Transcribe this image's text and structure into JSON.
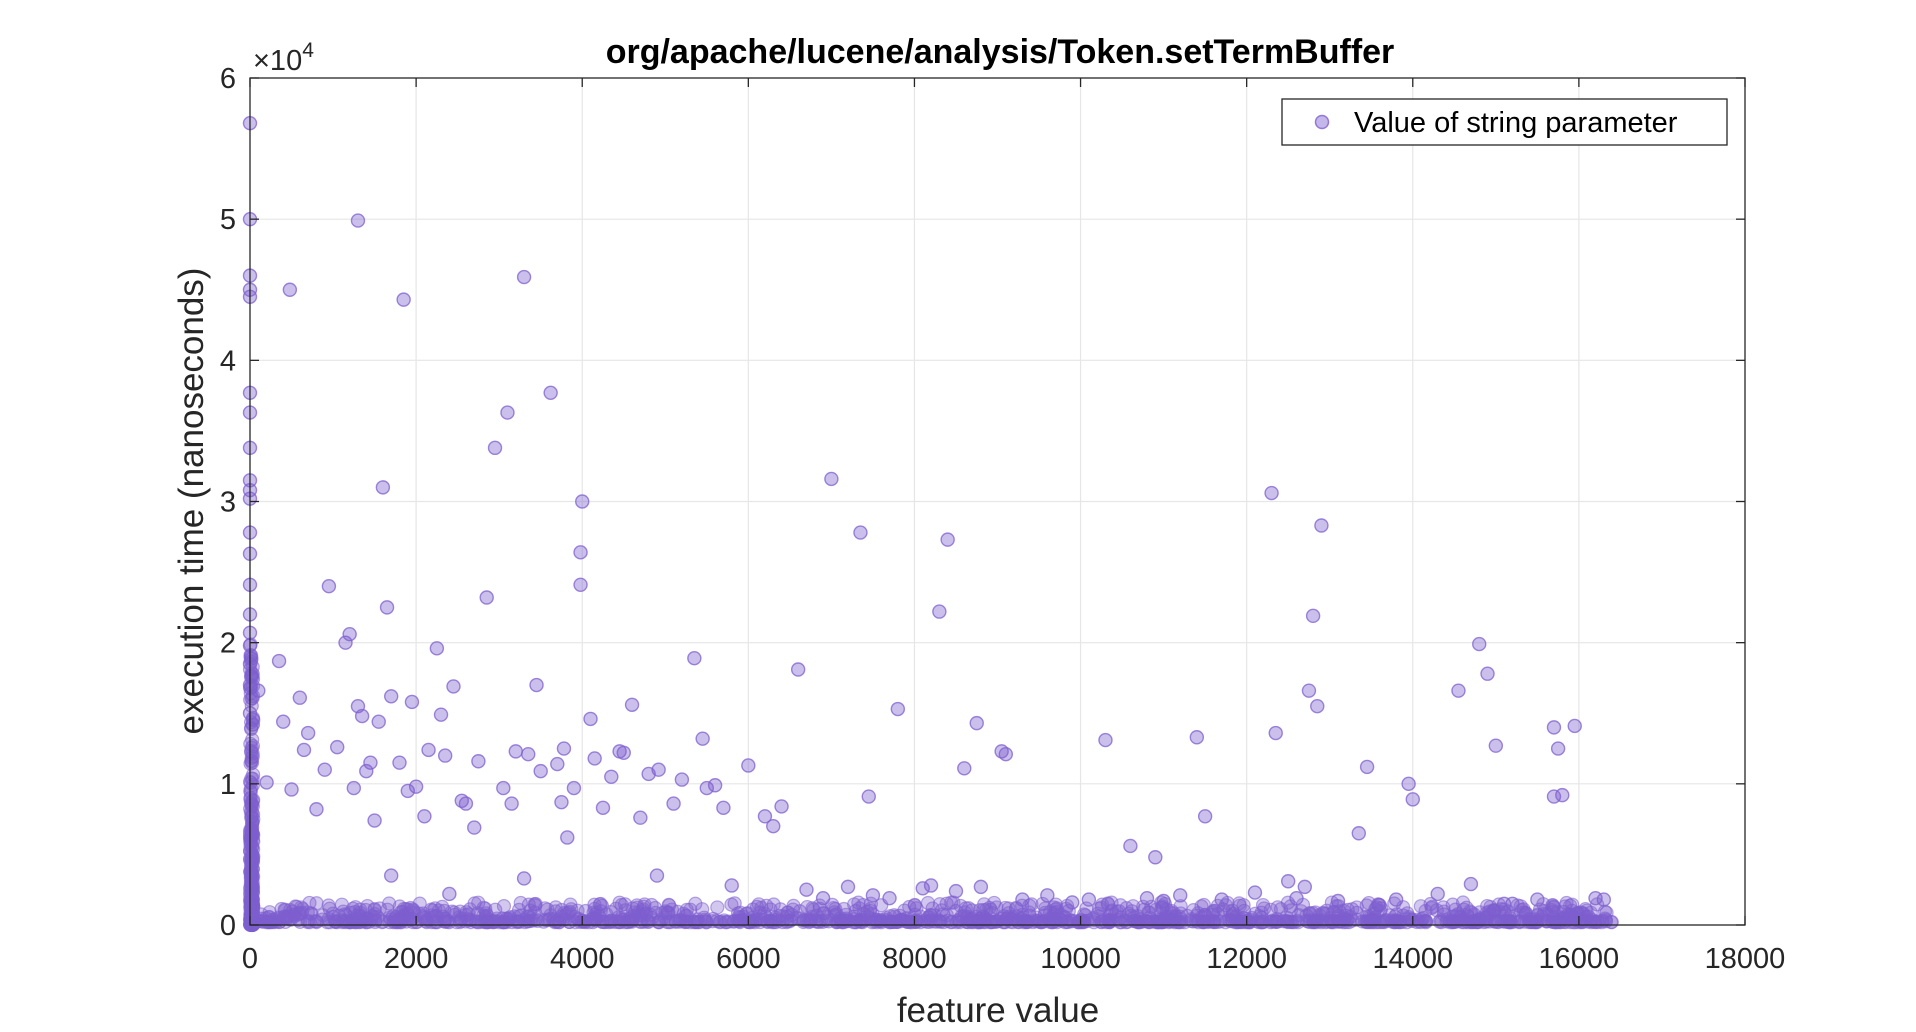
{
  "chart_data": {
    "type": "scatter",
    "title": "org/apache/lucene/analysis/Token.setTermBuffer",
    "xlabel": "feature value",
    "ylabel": "execution time (nanoseconds)",
    "xlim": [
      0,
      18000
    ],
    "ylim": [
      0,
      60000
    ],
    "x_ticks": [
      0,
      2000,
      4000,
      6000,
      8000,
      10000,
      12000,
      14000,
      16000,
      18000
    ],
    "y_ticks": [
      0,
      10000,
      20000,
      30000,
      40000,
      50000,
      60000
    ],
    "y_tick_labels": [
      "0",
      "1",
      "2",
      "3",
      "4",
      "5",
      "6"
    ],
    "y_exponent_label": "×10",
    "y_exponent_power": "4",
    "grid": true,
    "legend_position": "top-right",
    "marker_color": "#7e5fcf",
    "series": [
      {
        "name": "Value of string parameter",
        "x": [
          0,
          0,
          0,
          0,
          0,
          0,
          0,
          0,
          0,
          0,
          0,
          0,
          0,
          0,
          0,
          0,
          0,
          0,
          0,
          0,
          1300,
          1350,
          3300,
          3620,
          1850,
          480,
          3100,
          2950,
          1600,
          4000,
          3980,
          3980,
          1650,
          950,
          2250,
          2850,
          1200,
          350,
          650,
          1300,
          1450,
          1700,
          1950,
          2000,
          2450,
          2550,
          3350,
          3450,
          3780,
          3820,
          4100,
          4150,
          4350,
          4500,
          4600,
          4800,
          4920,
          5350,
          5450,
          5600,
          5700,
          6000,
          6300,
          6600,
          7000,
          7350,
          7450,
          7800,
          8300,
          8400,
          8600,
          8750,
          9100,
          9050,
          10300,
          10600,
          10900,
          11400,
          11500,
          12300,
          12350,
          12500,
          12800,
          12850,
          12900,
          12750,
          13350,
          13450,
          13950,
          14000,
          14550,
          14800,
          14900,
          15000,
          15700,
          15750,
          15800,
          15950,
          15700,
          200,
          400,
          500,
          700,
          800,
          900,
          1050,
          1150,
          1250,
          1400,
          1500,
          1550,
          1800,
          1900,
          2100,
          2150,
          2300,
          2350,
          2600,
          2700,
          2750,
          3050,
          3150,
          3200,
          3500,
          3700,
          3750,
          3900,
          4250,
          4450,
          4700,
          5100,
          5200,
          5500,
          6200,
          6400,
          6700,
          7200,
          7500,
          7700,
          8100,
          8500,
          8800,
          9300,
          9600,
          10100,
          10800,
          11200,
          11700,
          12100,
          12600,
          13100,
          13800,
          14300,
          14700,
          15200,
          15500,
          16200,
          100,
          600,
          1700,
          2400,
          3300,
          4900,
          5800,
          6900,
          8200,
          9900,
          11000,
          12700,
          13600,
          15100,
          16300
        ],
        "y": [
          56800,
          50000,
          46000,
          45000,
          44500,
          37700,
          36300,
          33800,
          31500,
          30800,
          30200,
          27800,
          26300,
          24100,
          22000,
          20700,
          19800,
          18500,
          17000,
          15000,
          49900,
          14800,
          45900,
          37700,
          44300,
          45000,
          36300,
          33800,
          31000,
          30000,
          26400,
          24100,
          22500,
          24000,
          19600,
          23200,
          20600,
          18700,
          12400,
          15500,
          11500,
          16200,
          15800,
          9800,
          16900,
          8800,
          12100,
          17000,
          12500,
          6200,
          14600,
          11800,
          10500,
          12200,
          15600,
          10700,
          11000,
          18900,
          13200,
          9900,
          8300,
          11300,
          7000,
          18100,
          31600,
          27800,
          9100,
          15300,
          22200,
          27300,
          11100,
          14300,
          12100,
          12300,
          13100,
          5600,
          4800,
          13300,
          7700,
          30600,
          13600,
          3100,
          21900,
          15500,
          28300,
          16600,
          6500,
          11200,
          10000,
          8900,
          16600,
          19900,
          17800,
          12700,
          14000,
          12500,
          9200,
          14100,
          9100,
          10100,
          14400,
          9600,
          13600,
          8200,
          11000,
          12600,
          20000,
          9700,
          10900,
          7400,
          14400,
          11500,
          9500,
          7700,
          12400,
          14900,
          12000,
          8600,
          6900,
          11600,
          9700,
          8600,
          12300,
          10900,
          11400,
          8700,
          9700,
          8300,
          12300,
          7600,
          8600,
          10300,
          9700,
          7700,
          8400,
          2500,
          2700,
          2100,
          1900,
          2600,
          2400,
          2700,
          1800,
          2100,
          1800,
          1900,
          2100,
          1800,
          2300,
          1900,
          1700,
          1800,
          2200,
          2900,
          1500,
          1800,
          1900,
          16600,
          16100,
          3500,
          2200,
          3300,
          3500,
          2800,
          1900,
          2800,
          1600,
          1700,
          2700,
          1400,
          1500,
          1800
        ]
      }
    ]
  }
}
